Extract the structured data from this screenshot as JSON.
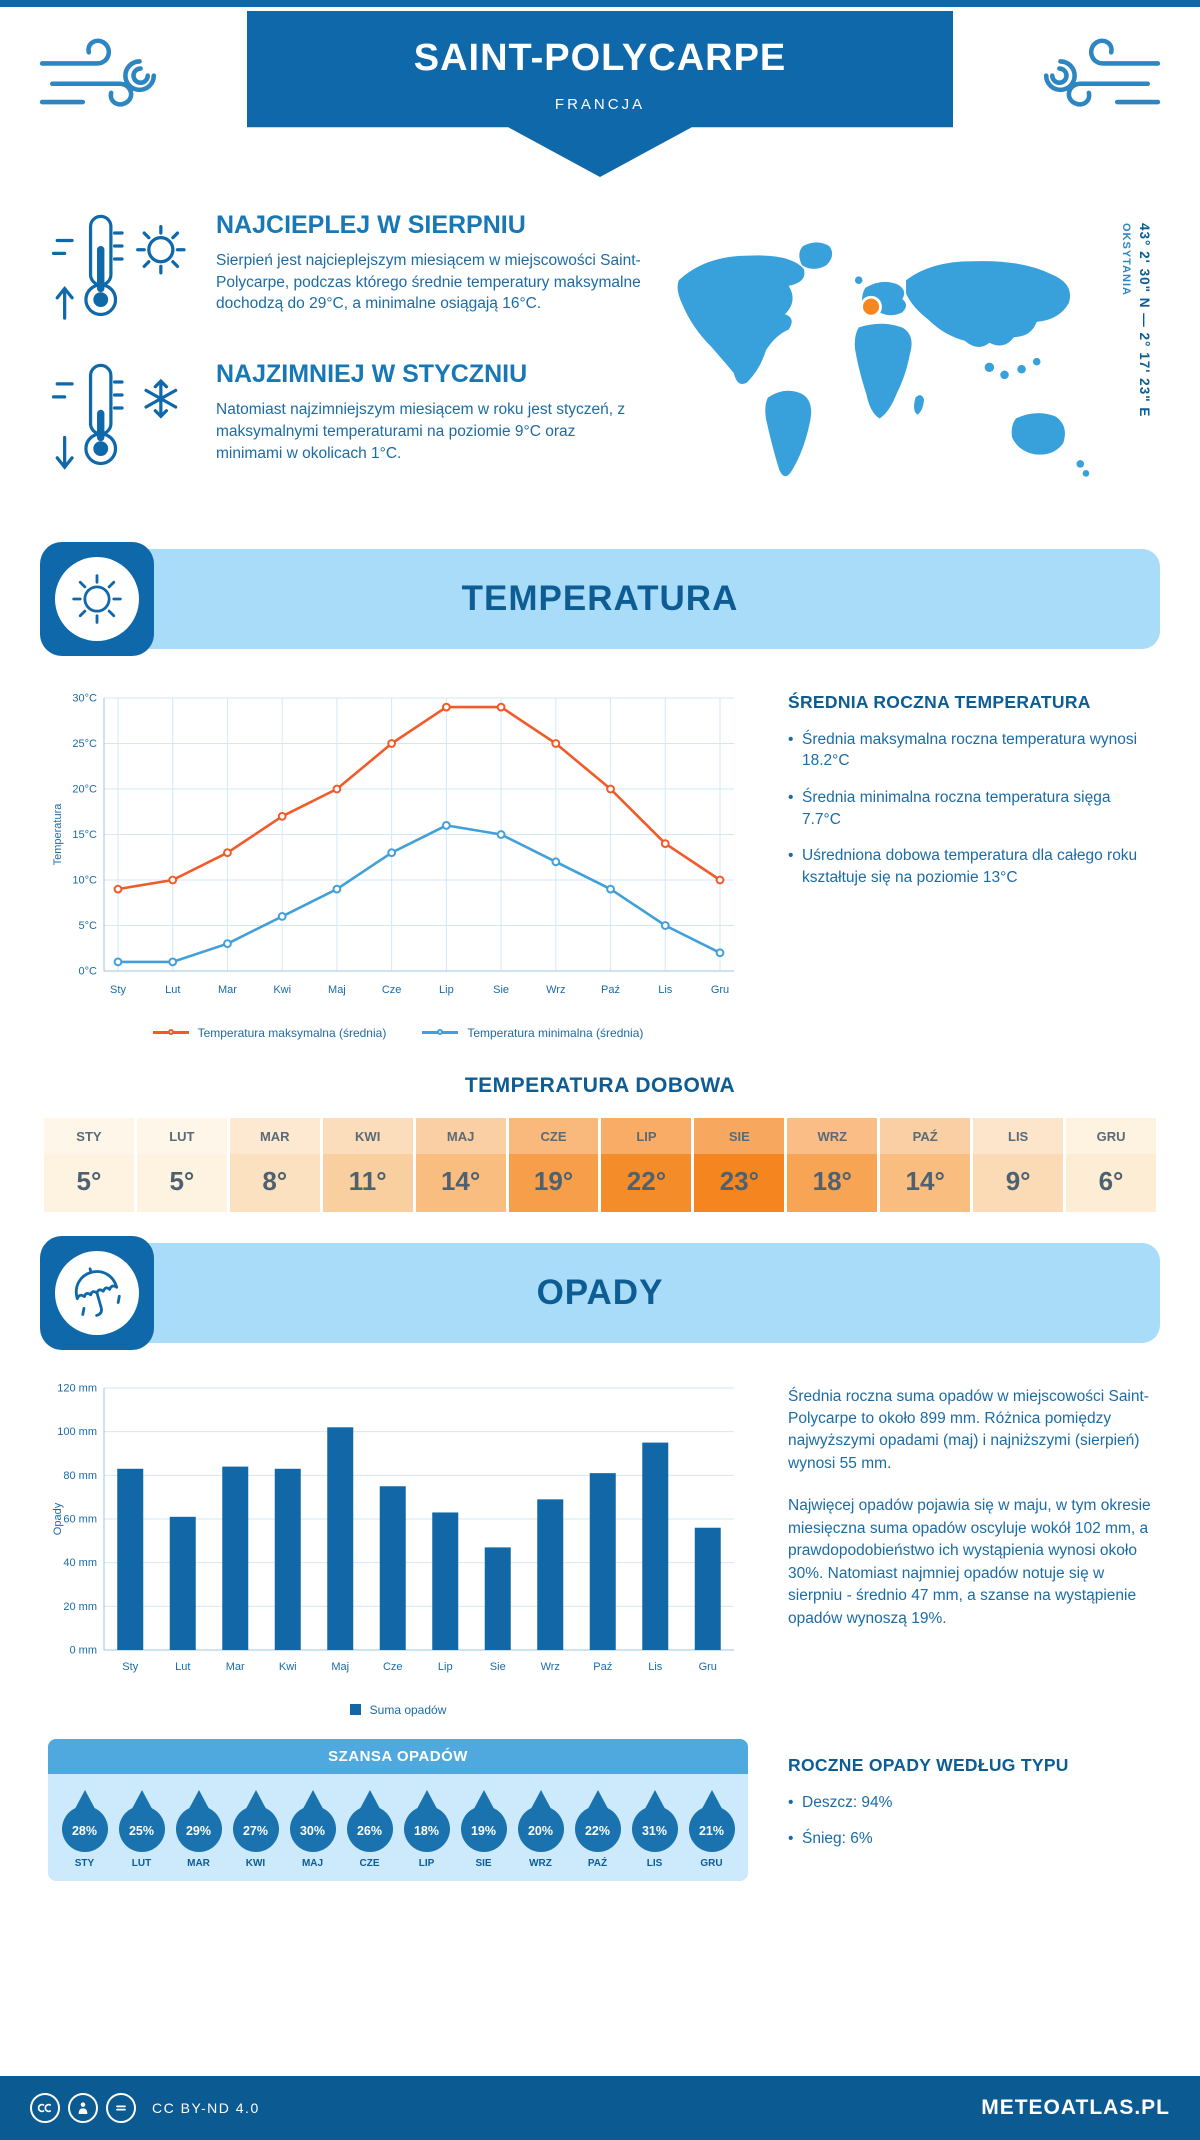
{
  "colors": {
    "primary": "#0f68a9",
    "banner_bg": "#a9dcf8",
    "deep_blue": "#0d5c94",
    "text_blue": "#1b6ba5",
    "heading_blue": "#1878b6",
    "line_max": "#f15a29",
    "line_min": "#41a0d9",
    "bar": "#1268a6",
    "droplet": "#1a73af",
    "chance_header_bg": "#4fa9de",
    "chance_body_bg": "#cdeafc",
    "temp_scale_low": "#fdf3e0",
    "temp_scale_high": "#f5861f",
    "map_fill": "#38a0da",
    "marker": "#f6871f",
    "footer_bg": "#0b5a92"
  },
  "months_upper": [
    "STY",
    "LUT",
    "MAR",
    "KWI",
    "MAJ",
    "CZE",
    "LIP",
    "SIE",
    "WRZ",
    "PAŹ",
    "LIS",
    "GRU"
  ],
  "header": {
    "title": "SAINT-POLYCARPE",
    "subtitle": "FRANCJA"
  },
  "intro": {
    "warmest": {
      "heading": "NAJCIEPLEJ W SIERPNIU",
      "text": "Sierpień jest najcieplejszym miesiącem w miejscowości Saint-Polycarpe, podczas którego średnie temperatury maksymalne dochodzą do 29°C, a minimalne osiągają 16°C."
    },
    "coldest": {
      "heading": "NAJZIMNIEJ W STYCZNIU",
      "text": "Natomiast najzimniejszym miesiącem w roku jest styczeń, z maksymalnymi temperaturami na poziomie 9°C oraz minimami w okolicach 1°C."
    },
    "map": {
      "region": "OKSYTANIA",
      "coordinates": "43° 2' 30\" N — 2° 17' 23\" E"
    }
  },
  "temperature_section": {
    "banner_title": "TEMPERATURA",
    "summary_heading": "ŚREDNIA ROCZNA TEMPERATURA",
    "bullets": [
      "Średnia maksymalna roczna temperatura wynosi 18.2°C",
      "Średnia minimalna roczna temperatura sięga 7.7°C",
      "Uśredniona dobowa temperatura dla całego roku kształtuje się na poziomie 13°C"
    ],
    "daily_heading": "TEMPERATURA DOBOWA",
    "daily_values": [
      "5°",
      "5°",
      "8°",
      "11°",
      "14°",
      "19°",
      "22°",
      "23°",
      "18°",
      "14°",
      "9°",
      "6°"
    ]
  },
  "precipitation_section": {
    "banner_title": "OPADY",
    "paragraphs": [
      "Średnia roczna suma opadów w miejscowości Saint-Polycarpe to około 899 mm. Różnica pomiędzy najwyższymi opadami (maj) i najniższymi (sierpień) wynosi 55 mm.",
      "Najwięcej opadów pojawia się w maju, w tym okresie miesięczna suma opadów oscyluje wokół 102 mm, a prawdopodobieństwo ich wystąpienia wynosi około 30%. Natomiast najmniej opadów notuje się w sierpniu - średnio 47 mm, a szanse na wystąpienie opadów wynoszą 19%."
    ],
    "chance_heading": "SZANSA OPADÓW",
    "chance_values": [
      "28%",
      "25%",
      "29%",
      "27%",
      "30%",
      "26%",
      "18%",
      "19%",
      "20%",
      "22%",
      "31%",
      "21%"
    ],
    "type_heading": "ROCZNE OPADY WEDŁUG TYPU",
    "type_bullets": [
      "Deszcz: 94%",
      "Śnieg: 6%"
    ]
  },
  "footer": {
    "license": "CC BY-ND 4.0",
    "brand": "METEOATLAS.PL"
  },
  "chart_data": [
    {
      "type": "line",
      "title": "Temperatura",
      "categories": [
        "Sty",
        "Lut",
        "Mar",
        "Kwi",
        "Maj",
        "Cze",
        "Lip",
        "Sie",
        "Wrz",
        "Paź",
        "Lis",
        "Gru"
      ],
      "series": [
        {
          "name": "Temperatura maksymalna (średnia)",
          "color": "#f15a29",
          "values": [
            9,
            10,
            13,
            17,
            20,
            25,
            29,
            29,
            25,
            20,
            14,
            10
          ]
        },
        {
          "name": "Temperatura minimalna (średnia)",
          "color": "#41a0d9",
          "values": [
            1,
            1,
            3,
            6,
            9,
            13,
            16,
            15,
            12,
            9,
            5,
            2
          ]
        }
      ],
      "ylabel": "Temperatura",
      "ylim": [
        0,
        30
      ],
      "ytick_step": 5,
      "ytick_suffix": "°C",
      "grid": true,
      "legend_position": "bottom"
    },
    {
      "type": "bar",
      "title": "Opady",
      "categories": [
        "Sty",
        "Lut",
        "Mar",
        "Kwi",
        "Maj",
        "Cze",
        "Lip",
        "Sie",
        "Wrz",
        "Paź",
        "Lis",
        "Gru"
      ],
      "series": [
        {
          "name": "Suma opadów",
          "color": "#1268a6",
          "values": [
            83,
            61,
            84,
            83,
            102,
            75,
            63,
            47,
            69,
            81,
            95,
            56
          ]
        }
      ],
      "ylabel": "Opady",
      "ylim": [
        0,
        120
      ],
      "ytick_step": 20,
      "ytick_suffix": " mm",
      "grid": true,
      "legend_position": "bottom"
    }
  ]
}
